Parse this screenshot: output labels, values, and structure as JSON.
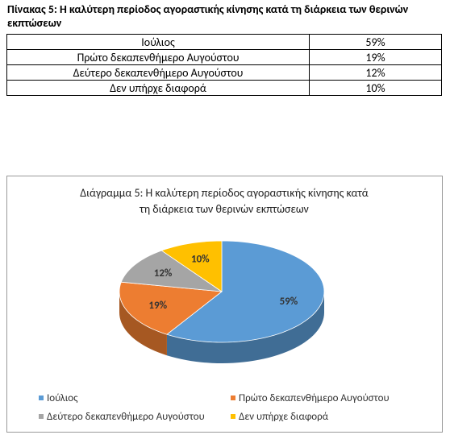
{
  "table": {
    "title": "Πίνακας 5: Η καλύτερη περίοδος αγοραστικής κίνησης κατά τη διάρκεια των θερινών εκπτώσεων",
    "rows": [
      [
        "Ιούλιος",
        "59%"
      ],
      [
        "Πρώτο δεκαπενθήμερο Αυγούστου",
        "19%"
      ],
      [
        "Δεύτερο δεκαπενθήμερο Αυγούστου",
        "12%"
      ],
      [
        "Δεν υπήρχε διαφορά",
        "10%"
      ]
    ]
  },
  "chart_data": {
    "type": "pie",
    "title": "Διάγραμμα 5: Η καλύτερη περίοδος αγοραστικής κίνησης κατά τη διάρκεια των θερινών εκπτώσεων",
    "categories": [
      "Ιούλιος",
      "Πρώτο δεκαπενθήμερο Αυγούστου",
      "Δεύτερο δεκαπενθήμερο Αυγούστου",
      "Δεν υπήρχε διαφορά"
    ],
    "values": [
      59,
      19,
      12,
      10
    ],
    "value_labels": [
      "59%",
      "19%",
      "12%",
      "10%"
    ],
    "colors": [
      "#5b9bd5",
      "#ed7d31",
      "#a5a5a5",
      "#ffc000"
    ]
  }
}
